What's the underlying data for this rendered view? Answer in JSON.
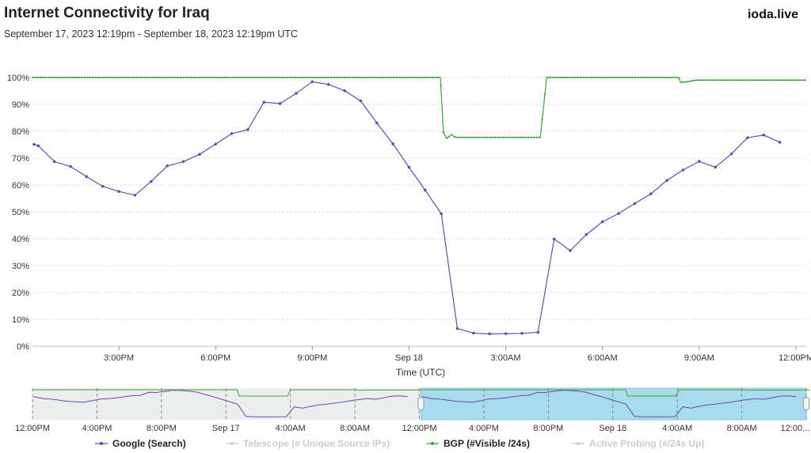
{
  "header": {
    "title": "Internet Connectivity for Iraq",
    "subtitle": "September 17, 2023 12:19pm - September 18, 2023 12:19pm UTC",
    "brand": "ioda.live"
  },
  "chart_data": {
    "type": "line",
    "xlabel": "Time (UTC)",
    "ylabel": "",
    "x_range_hours": [
      0,
      24
    ],
    "ylim": [
      0,
      100
    ],
    "yticks": [
      "0%",
      "10%",
      "20%",
      "30%",
      "40%",
      "50%",
      "60%",
      "70%",
      "80%",
      "90%",
      "100%"
    ],
    "x_ticks": [
      {
        "label": "3:00PM",
        "t": 2.68
      },
      {
        "label": "6:00PM",
        "t": 5.68
      },
      {
        "label": "9:00PM",
        "t": 8.68
      },
      {
        "label": "Sep 18",
        "t": 11.68
      },
      {
        "label": "3:00AM",
        "t": 14.68
      },
      {
        "label": "6:00AM",
        "t": 17.68
      },
      {
        "label": "9:00AM",
        "t": 20.68
      },
      {
        "label": "12:00PM",
        "t": 23.68
      }
    ],
    "grid": true,
    "colors": {
      "google": "#6a4bb0",
      "bgp": "#3aa33a",
      "navigator_highlight": "#a8dcec",
      "navigator_base": "#ebeeed"
    },
    "series": [
      {
        "name": "Google (Search)",
        "x": [
          0.05,
          0.18,
          0.68,
          1.18,
          1.68,
          2.18,
          2.68,
          3.18,
          3.68,
          4.18,
          4.68,
          5.18,
          5.68,
          6.18,
          6.68,
          7.18,
          7.68,
          8.18,
          8.68,
          9.18,
          9.68,
          10.18,
          10.68,
          11.18,
          11.68,
          12.18,
          12.68,
          13.18,
          13.68,
          14.18,
          14.68,
          15.18,
          15.68,
          16.18,
          16.68,
          17.18,
          17.68,
          18.18,
          18.68,
          19.18,
          19.68,
          20.18,
          20.68,
          21.18,
          21.68,
          22.18,
          22.68,
          23.18
        ],
        "values": [
          75.1,
          74.6,
          68.7,
          66.9,
          63.1,
          59.5,
          57.6,
          56.2,
          61.3,
          67.1,
          68.7,
          71.4,
          75.2,
          79.1,
          80.6,
          90.8,
          90.3,
          94.1,
          98.4,
          97.4,
          95.1,
          91.3,
          83.1,
          75.3,
          66.6,
          58.1,
          49.3,
          6.6,
          4.9,
          4.6,
          4.7,
          4.8,
          5.2,
          39.9,
          35.6,
          41.6,
          46.3,
          49.4,
          53.1,
          56.7,
          61.7,
          65.6,
          68.8,
          66.6,
          71.6,
          77.6,
          78.6,
          75.9
        ]
      },
      {
        "name": "Telescope (# Unique Source IPs)",
        "x": [],
        "values": [],
        "visible": false
      },
      {
        "name": "BGP (#Visible /24s)",
        "x": [
          0,
          12.65,
          12.75,
          12.85,
          13.0,
          13.1,
          13.2,
          13.4,
          15.75,
          15.95,
          20.05,
          20.1,
          20.3,
          20.6,
          24.0
        ],
        "values": [
          100,
          100,
          79.6,
          77.3,
          78.8,
          77.8,
          77.7,
          77.7,
          77.7,
          100,
          100,
          98.2,
          98.4,
          99.0,
          99.0
        ]
      },
      {
        "name": "Active Probing (#/24s Up)",
        "x": [],
        "values": [],
        "visible": false
      }
    ]
  },
  "navigator": {
    "tick_labels": [
      "12:00PM",
      "4:00PM",
      "8:00PM",
      "Sep 17",
      "4:00AM",
      "8:00AM",
      "12:00PM",
      "4:00PM",
      "8:00PM",
      "Sep 18",
      "4:00AM",
      "8:00AM",
      "12:00..."
    ]
  }
}
